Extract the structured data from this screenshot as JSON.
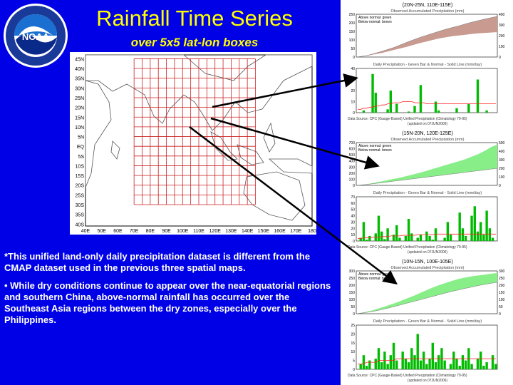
{
  "header": {
    "title": "Rainfall Time Series",
    "subtitle": "over 5x5 lat-lon boxes"
  },
  "logo": {
    "text_top": "NATIONAL OCEANIC AND ATMOSPHERIC ADMINISTRATION",
    "text_bottom": "U.S. DEPARTMENT OF COMMERCE",
    "center": "NOAA"
  },
  "map": {
    "lat_labels": [
      "45N",
      "40N",
      "35N",
      "30N",
      "25N",
      "20N",
      "15N",
      "10N",
      "5N",
      "EQ",
      "5S",
      "10S",
      "15S",
      "20S",
      "25S",
      "30S",
      "35S",
      "40S"
    ],
    "lon_labels": [
      "40E",
      "50E",
      "60E",
      "70E",
      "80E",
      "90E",
      "100E",
      "110E",
      "120E",
      "130E",
      "140E",
      "150E",
      "160E",
      "170E",
      "180"
    ],
    "highlight_boxes": [
      "20N-25N, 110E-115E",
      "15N-20N, 120E-125E",
      "10N-15N, 100E-105E"
    ]
  },
  "notes": {
    "note1": "*This unified land-only daily precipitation dataset is different from the CMAP dataset used in the previous three spatial maps.",
    "note2": "• While dry conditions continue to appear over the near-equatorial regions and southern China, above-normal rainfall has occurred over the Southeast Asia regions between the dry zones, especially over the Philippines."
  },
  "colors": {
    "background": "#0000e6",
    "title": "#ffff00",
    "above_normal_1": "#c89a90",
    "above_normal": "#88ee88",
    "daily_bar": "#00bb00",
    "normal_line": "#ff2222"
  },
  "chart_data": [
    {
      "type": "area",
      "panel": 1,
      "box": "(20N-25N, 110E-115E)",
      "title": "Observed Accumulated Precipitation (mm)",
      "legend": [
        "Above normal: green",
        "Below normal: brown"
      ],
      "y_left_ticks": [
        "0",
        "50",
        "100",
        "150",
        "200",
        "250"
      ],
      "y_right_ticks": [
        "0",
        "100",
        "200",
        "300",
        "400"
      ],
      "observed": [
        0,
        5,
        15,
        28,
        40,
        55,
        70,
        85,
        100,
        118,
        135,
        150,
        165,
        180,
        190,
        200,
        208,
        215,
        222,
        228,
        232,
        236,
        240
      ],
      "normal": [
        0,
        8,
        20,
        38,
        55,
        75,
        95,
        120,
        145,
        168,
        190,
        210,
        230,
        250,
        268,
        285,
        300,
        318,
        335,
        350,
        365,
        378,
        392
      ],
      "fill": "below"
    },
    {
      "type": "bar",
      "panel": 1,
      "title": "Daily Precipitation - Green Bar & Normal - Solid Line (mm/day)",
      "y_ticks": [
        "0",
        "10",
        "20",
        "30",
        "40"
      ],
      "daily": [
        0,
        0,
        2,
        0,
        0,
        35,
        18,
        0,
        0,
        0,
        3,
        20,
        0,
        8,
        0,
        0,
        0,
        1,
        0,
        6,
        0,
        25,
        0,
        0,
        0,
        0,
        10,
        2,
        0,
        0,
        0,
        0,
        0,
        4,
        0,
        0,
        0,
        8,
        0,
        0,
        30,
        0,
        0,
        2,
        0,
        0,
        0
      ],
      "normal": [
        3,
        3,
        4,
        4,
        5,
        5,
        6,
        6,
        7,
        7,
        8,
        8,
        9,
        9,
        9,
        10,
        10,
        10,
        10,
        9,
        9,
        9,
        9,
        8,
        8,
        8,
        8,
        8,
        8,
        8,
        8,
        8,
        8,
        8,
        8,
        8,
        8,
        8,
        8,
        8,
        8,
        8,
        8,
        8,
        8,
        8,
        8
      ],
      "source": "Data Source: CPC (Gauge-Based) Unified Precipitation (Climatology 79-95)",
      "updated": "(updated on 07JUN2006)"
    },
    {
      "type": "area",
      "panel": 2,
      "box": "(15N-20N, 120E-125E)",
      "title": "Observed Accumulated Precipitation (mm)",
      "legend": [
        "Above normal: green",
        "Below normal: brown"
      ],
      "y_left_ticks": [
        "0",
        "100",
        "200",
        "300",
        "400",
        "500",
        "600",
        "700"
      ],
      "y_right_ticks": [
        "0",
        "100",
        "200",
        "300",
        "400",
        "500"
      ],
      "observed": [
        0,
        10,
        25,
        45,
        65,
        85,
        105,
        125,
        150,
        175,
        200,
        230,
        260,
        290,
        320,
        350,
        380,
        410,
        450,
        490,
        540,
        600,
        640
      ],
      "normal": [
        0,
        8,
        18,
        30,
        42,
        55,
        68,
        80,
        92,
        105,
        118,
        130,
        142,
        155,
        168,
        180,
        192,
        205,
        218,
        230,
        242,
        255,
        268
      ],
      "fill": "above"
    },
    {
      "type": "bar",
      "panel": 2,
      "title": "Daily Precipitation - Green Bar & Normal - Solid Line (mm/day)",
      "y_ticks": [
        "0",
        "10",
        "20",
        "30",
        "40",
        "50",
        "60",
        "70"
      ],
      "daily": [
        0,
        5,
        30,
        2,
        8,
        0,
        12,
        40,
        15,
        3,
        20,
        0,
        10,
        25,
        5,
        0,
        8,
        35,
        12,
        0,
        5,
        10,
        0,
        15,
        8,
        2,
        20,
        0,
        0,
        5,
        30,
        10,
        0,
        0,
        45,
        20,
        8,
        0,
        40,
        55,
        15,
        30,
        10,
        48,
        20,
        5,
        0
      ],
      "normal": [
        4,
        4,
        5,
        5,
        5,
        6,
        6,
        6,
        7,
        7,
        7,
        8,
        8,
        8,
        8,
        9,
        9,
        9,
        9,
        9,
        10,
        10,
        10,
        10,
        10,
        10,
        11,
        11,
        11,
        11,
        11,
        11,
        11,
        11,
        11,
        11,
        11,
        11,
        11,
        11,
        11,
        11,
        11,
        11,
        11,
        11,
        11
      ],
      "source": "Data Source: CPC (Gauge-Based) Unified Precipitation (Climatology 79-95)",
      "updated": "(updated on 07JUN2006)"
    },
    {
      "type": "area",
      "panel": 3,
      "box": "(10N-15N, 100E-105E)",
      "title": "Observed Accumulated Precipitation (mm)",
      "legend": [
        "Above normal: green",
        "Below normal: brown"
      ],
      "y_left_ticks": [
        "0",
        "50",
        "100",
        "150",
        "200",
        "250",
        "300"
      ],
      "y_right_ticks": [
        "0",
        "50",
        "100",
        "150",
        "200",
        "250",
        "300"
      ],
      "observed": [
        0,
        8,
        18,
        30,
        45,
        60,
        75,
        92,
        110,
        128,
        148,
        168,
        188,
        205,
        220,
        235,
        248,
        258,
        266,
        272,
        278,
        284,
        290
      ],
      "normal": [
        0,
        5,
        12,
        20,
        30,
        40,
        52,
        64,
        76,
        88,
        100,
        112,
        124,
        136,
        148,
        160,
        170,
        180,
        190,
        200,
        208,
        216,
        224
      ],
      "fill": "above"
    },
    {
      "type": "bar",
      "panel": 3,
      "title": "Daily Precipitation - Green Bar & Normal - Solid Line (mm/day)",
      "y_ticks": [
        "0",
        "5",
        "10",
        "15",
        "20",
        "25"
      ],
      "daily": [
        0,
        3,
        8,
        2,
        5,
        0,
        6,
        12,
        4,
        10,
        3,
        8,
        15,
        5,
        0,
        10,
        6,
        4,
        12,
        8,
        20,
        5,
        10,
        3,
        6,
        15,
        4,
        8,
        12,
        5,
        0,
        3,
        10,
        6,
        2,
        8,
        5,
        12,
        3,
        0,
        6,
        10,
        2,
        4,
        0,
        8,
        3
      ],
      "normal": [
        3,
        3,
        3,
        4,
        4,
        4,
        4,
        5,
        5,
        5,
        5,
        5,
        5,
        6,
        6,
        6,
        6,
        6,
        6,
        6,
        6,
        6,
        6,
        6,
        6,
        6,
        6,
        6,
        6,
        6,
        6,
        6,
        6,
        6,
        6,
        6,
        6,
        6,
        6,
        6,
        6,
        6,
        6,
        6,
        6,
        6,
        6
      ],
      "source": "Data Source: CPC (Gauge-Based) Unified Precipitation (Climatology 79-95)",
      "updated": "(updated on 07JUN2006)"
    }
  ]
}
